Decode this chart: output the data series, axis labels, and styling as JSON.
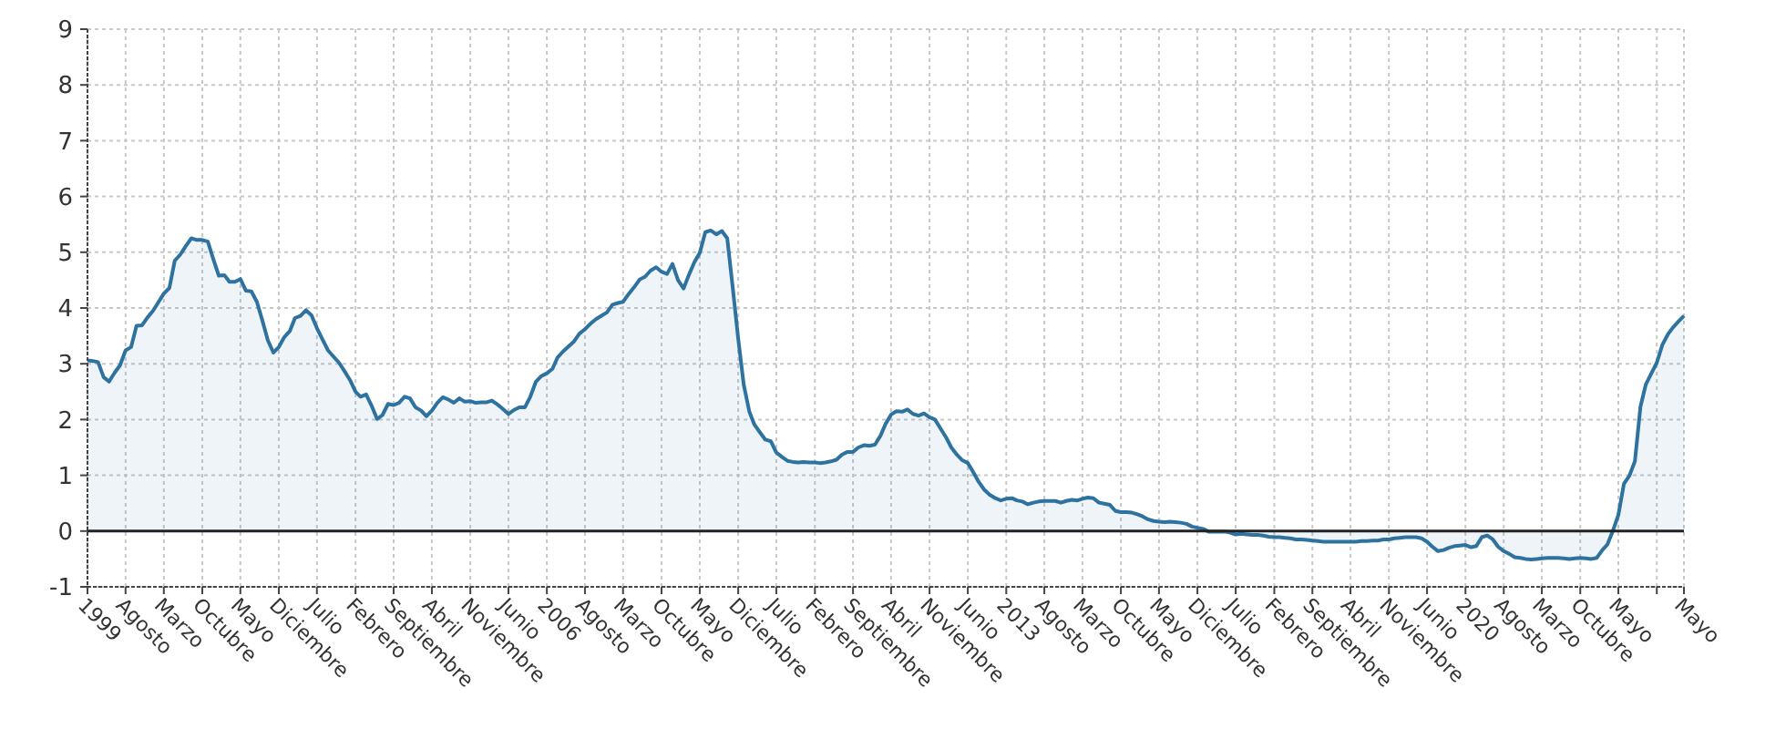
{
  "chart_data": {
    "type": "area",
    "xlim": [
      "1999-01",
      "2023-05"
    ],
    "ylim": [
      -1,
      9
    ],
    "yticks": [
      -1,
      0,
      1,
      2,
      3,
      4,
      5,
      6,
      7,
      8,
      9
    ],
    "xticks": [
      {
        "value": "1999-01",
        "label": "1999"
      },
      {
        "value": "1999-08",
        "label": "Agosto"
      },
      {
        "value": "2000-03",
        "label": "Marzo"
      },
      {
        "value": "2000-10",
        "label": "Octubre"
      },
      {
        "value": "2001-05",
        "label": "Mayo"
      },
      {
        "value": "2001-12",
        "label": "Diciembre"
      },
      {
        "value": "2002-07",
        "label": "Julio"
      },
      {
        "value": "2003-02",
        "label": "Febrero"
      },
      {
        "value": "2003-09",
        "label": "Septiembre"
      },
      {
        "value": "2004-04",
        "label": "Abril"
      },
      {
        "value": "2004-11",
        "label": "Noviembre"
      },
      {
        "value": "2005-06",
        "label": "Junio"
      },
      {
        "value": "2006-01",
        "label": "2006"
      },
      {
        "value": "2006-08",
        "label": "Agosto"
      },
      {
        "value": "2007-03",
        "label": "Marzo"
      },
      {
        "value": "2007-10",
        "label": "Octubre"
      },
      {
        "value": "2008-05",
        "label": "Mayo"
      },
      {
        "value": "2008-12",
        "label": "Diciembre"
      },
      {
        "value": "2009-07",
        "label": "Julio"
      },
      {
        "value": "2010-02",
        "label": "Febrero"
      },
      {
        "value": "2010-09",
        "label": "Septiembre"
      },
      {
        "value": "2011-04",
        "label": "Abril"
      },
      {
        "value": "2011-11",
        "label": "Noviembre"
      },
      {
        "value": "2012-06",
        "label": "Junio"
      },
      {
        "value": "2013-01",
        "label": "2013"
      },
      {
        "value": "2013-08",
        "label": "Agosto"
      },
      {
        "value": "2014-03",
        "label": "Marzo"
      },
      {
        "value": "2014-10",
        "label": "Octubre"
      },
      {
        "value": "2015-05",
        "label": "Mayo"
      },
      {
        "value": "2015-12",
        "label": "Diciembre"
      },
      {
        "value": "2016-07",
        "label": "Julio"
      },
      {
        "value": "2017-02",
        "label": "Febrero"
      },
      {
        "value": "2017-09",
        "label": "Septiembre"
      },
      {
        "value": "2018-04",
        "label": "Abril"
      },
      {
        "value": "2018-11",
        "label": "Noviembre"
      },
      {
        "value": "2019-06",
        "label": "Junio"
      },
      {
        "value": "2020-01",
        "label": "2020"
      },
      {
        "value": "2020-08",
        "label": "Agosto"
      },
      {
        "value": "2021-03",
        "label": "Marzo"
      },
      {
        "value": "2021-10",
        "label": "Octubre"
      },
      {
        "value": "2022-05",
        "label": "Mayo"
      },
      {
        "value": "2022-12",
        "label": null
      },
      {
        "value": "2023-05",
        "label": "Mayo"
      }
    ],
    "grid": true,
    "ref_lines": [
      {
        "axis": "y",
        "value": 0,
        "label": null,
        "color": "#222222"
      }
    ],
    "series": [
      {
        "color": "#2e72a0",
        "x": [
          "1999-01",
          "1999-02",
          "1999-03",
          "1999-04",
          "1999-05",
          "1999-06",
          "1999-07",
          "1999-08",
          "1999-09",
          "1999-10",
          "1999-11",
          "1999-12",
          "2000-01",
          "2000-02",
          "2000-03",
          "2000-04",
          "2000-05",
          "2000-06",
          "2000-07",
          "2000-08",
          "2000-09",
          "2000-10",
          "2000-11",
          "2000-12",
          "2001-01",
          "2001-02",
          "2001-03",
          "2001-04",
          "2001-05",
          "2001-06",
          "2001-07",
          "2001-08",
          "2001-09",
          "2001-10",
          "2001-11",
          "2001-12",
          "2002-01",
          "2002-02",
          "2002-03",
          "2002-04",
          "2002-05",
          "2002-06",
          "2002-07",
          "2002-08",
          "2002-09",
          "2002-10",
          "2002-11",
          "2002-12",
          "2003-01",
          "2003-02",
          "2003-03",
          "2003-04",
          "2003-05",
          "2003-06",
          "2003-07",
          "2003-08",
          "2003-09",
          "2003-10",
          "2003-11",
          "2003-12",
          "2004-01",
          "2004-02",
          "2004-03",
          "2004-04",
          "2004-05",
          "2004-06",
          "2004-07",
          "2004-08",
          "2004-09",
          "2004-10",
          "2004-11",
          "2004-12",
          "2005-01",
          "2005-02",
          "2005-03",
          "2005-04",
          "2005-05",
          "2005-06",
          "2005-07",
          "2005-08",
          "2005-09",
          "2005-10",
          "2005-11",
          "2005-12",
          "2006-01",
          "2006-02",
          "2006-03",
          "2006-04",
          "2006-05",
          "2006-06",
          "2006-07",
          "2006-08",
          "2006-09",
          "2006-10",
          "2006-11",
          "2006-12",
          "2007-01",
          "2007-02",
          "2007-03",
          "2007-04",
          "2007-05",
          "2007-06",
          "2007-07",
          "2007-08",
          "2007-09",
          "2007-10",
          "2007-11",
          "2007-12",
          "2008-01",
          "2008-02",
          "2008-03",
          "2008-04",
          "2008-05",
          "2008-06",
          "2008-07",
          "2008-08",
          "2008-09",
          "2008-10",
          "2008-11",
          "2008-12",
          "2009-01",
          "2009-02",
          "2009-03",
          "2009-04",
          "2009-05",
          "2009-06",
          "2009-07",
          "2009-08",
          "2009-09",
          "2009-10",
          "2009-11",
          "2009-12",
          "2010-01",
          "2010-02",
          "2010-03",
          "2010-04",
          "2010-05",
          "2010-06",
          "2010-07",
          "2010-08",
          "2010-09",
          "2010-10",
          "2010-11",
          "2010-12",
          "2011-01",
          "2011-02",
          "2011-03",
          "2011-04",
          "2011-05",
          "2011-06",
          "2011-07",
          "2011-08",
          "2011-09",
          "2011-10",
          "2011-11",
          "2011-12",
          "2012-01",
          "2012-02",
          "2012-03",
          "2012-04",
          "2012-05",
          "2012-06",
          "2012-07",
          "2012-08",
          "2012-09",
          "2012-10",
          "2012-11",
          "2012-12",
          "2013-01",
          "2013-02",
          "2013-03",
          "2013-04",
          "2013-05",
          "2013-06",
          "2013-07",
          "2013-08",
          "2013-09",
          "2013-10",
          "2013-11",
          "2013-12",
          "2014-01",
          "2014-02",
          "2014-03",
          "2014-04",
          "2014-05",
          "2014-06",
          "2014-07",
          "2014-08",
          "2014-09",
          "2014-10",
          "2014-11",
          "2014-12",
          "2015-01",
          "2015-02",
          "2015-03",
          "2015-04",
          "2015-05",
          "2015-06",
          "2015-07",
          "2015-08",
          "2015-09",
          "2015-10",
          "2015-11",
          "2015-12",
          "2016-01",
          "2016-02",
          "2016-03",
          "2016-04",
          "2016-05",
          "2016-06",
          "2016-07",
          "2016-08",
          "2016-09",
          "2016-10",
          "2016-11",
          "2016-12",
          "2017-01",
          "2017-02",
          "2017-03",
          "2017-04",
          "2017-05",
          "2017-06",
          "2017-07",
          "2017-08",
          "2017-09",
          "2017-10",
          "2017-11",
          "2017-12",
          "2018-01",
          "2018-02",
          "2018-03",
          "2018-04",
          "2018-05",
          "2018-06",
          "2018-07",
          "2018-08",
          "2018-09",
          "2018-10",
          "2018-11",
          "2018-12",
          "2019-01",
          "2019-02",
          "2019-03",
          "2019-04",
          "2019-05",
          "2019-06",
          "2019-07",
          "2019-08",
          "2019-09",
          "2019-10",
          "2019-11",
          "2019-12",
          "2020-01",
          "2020-02",
          "2020-03",
          "2020-04",
          "2020-05",
          "2020-06",
          "2020-07",
          "2020-08",
          "2020-09",
          "2020-10",
          "2020-11",
          "2020-12",
          "2021-01",
          "2021-02",
          "2021-03",
          "2021-04",
          "2021-05",
          "2021-06",
          "2021-07",
          "2021-08",
          "2021-09",
          "2021-10",
          "2021-11",
          "2021-12",
          "2022-01",
          "2022-02",
          "2022-03",
          "2022-04",
          "2022-05",
          "2022-06",
          "2022-07",
          "2022-08",
          "2022-09",
          "2022-10",
          "2022-11",
          "2022-12",
          "2023-01",
          "2023-02",
          "2023-03",
          "2023-04",
          "2023-05"
        ],
        "values": [
          3.06,
          3.05,
          3.03,
          2.76,
          2.68,
          2.84,
          2.97,
          3.24,
          3.3,
          3.68,
          3.69,
          3.83,
          3.95,
          4.11,
          4.26,
          4.36,
          4.85,
          4.96,
          5.11,
          5.25,
          5.22,
          5.22,
          5.19,
          4.88,
          4.58,
          4.59,
          4.47,
          4.47,
          4.52,
          4.31,
          4.3,
          4.11,
          3.77,
          3.42,
          3.2,
          3.3,
          3.48,
          3.59,
          3.82,
          3.86,
          3.96,
          3.87,
          3.64,
          3.44,
          3.24,
          3.13,
          3.02,
          2.87,
          2.71,
          2.5,
          2.41,
          2.45,
          2.25,
          2.01,
          2.08,
          2.28,
          2.26,
          2.3,
          2.41,
          2.38,
          2.22,
          2.16,
          2.06,
          2.16,
          2.3,
          2.4,
          2.36,
          2.3,
          2.38,
          2.32,
          2.33,
          2.3,
          2.31,
          2.31,
          2.34,
          2.27,
          2.19,
          2.1,
          2.17,
          2.22,
          2.22,
          2.41,
          2.68,
          2.78,
          2.83,
          2.91,
          3.11,
          3.22,
          3.31,
          3.4,
          3.54,
          3.62,
          3.72,
          3.8,
          3.86,
          3.92,
          4.06,
          4.09,
          4.11,
          4.25,
          4.37,
          4.51,
          4.56,
          4.67,
          4.73,
          4.65,
          4.61,
          4.79,
          4.5,
          4.35,
          4.59,
          4.82,
          4.99,
          5.36,
          5.39,
          5.32,
          5.38,
          5.25,
          4.35,
          3.45,
          2.62,
          2.14,
          1.91,
          1.77,
          1.64,
          1.61,
          1.41,
          1.33,
          1.26,
          1.24,
          1.23,
          1.24,
          1.23,
          1.23,
          1.22,
          1.23,
          1.25,
          1.28,
          1.37,
          1.42,
          1.42,
          1.5,
          1.54,
          1.53,
          1.55,
          1.71,
          1.92,
          2.09,
          2.15,
          2.14,
          2.18,
          2.1,
          2.07,
          2.11,
          2.04,
          2.0,
          1.84,
          1.68,
          1.5,
          1.37,
          1.27,
          1.22,
          1.06,
          0.88,
          0.74,
          0.65,
          0.59,
          0.55,
          0.58,
          0.59,
          0.55,
          0.53,
          0.48,
          0.51,
          0.53,
          0.54,
          0.54,
          0.54,
          0.51,
          0.54,
          0.56,
          0.55,
          0.58,
          0.6,
          0.59,
          0.51,
          0.49,
          0.47,
          0.36,
          0.34,
          0.34,
          0.33,
          0.3,
          0.26,
          0.21,
          0.18,
          0.17,
          0.16,
          0.17,
          0.16,
          0.15,
          0.13,
          0.08,
          0.06,
          0.04,
          -0.01,
          -0.01,
          -0.01,
          -0.01,
          -0.03,
          -0.06,
          -0.05,
          -0.06,
          -0.07,
          -0.07,
          -0.08,
          -0.1,
          -0.11,
          -0.11,
          -0.12,
          -0.13,
          -0.15,
          -0.15,
          -0.16,
          -0.17,
          -0.18,
          -0.19,
          -0.19,
          -0.19,
          -0.19,
          -0.19,
          -0.19,
          -0.19,
          -0.18,
          -0.18,
          -0.17,
          -0.17,
          -0.15,
          -0.15,
          -0.13,
          -0.12,
          -0.11,
          -0.11,
          -0.11,
          -0.13,
          -0.19,
          -0.28,
          -0.36,
          -0.34,
          -0.3,
          -0.27,
          -0.26,
          -0.25,
          -0.29,
          -0.27,
          -0.11,
          -0.08,
          -0.15,
          -0.28,
          -0.36,
          -0.41,
          -0.47,
          -0.48,
          -0.5,
          -0.51,
          -0.5,
          -0.49,
          -0.48,
          -0.48,
          -0.48,
          -0.49,
          -0.5,
          -0.49,
          -0.48,
          -0.49,
          -0.5,
          -0.48,
          -0.34,
          -0.24,
          0.01,
          0.29,
          0.85,
          0.99,
          1.25,
          2.23,
          2.63,
          2.83,
          3.02,
          3.34,
          3.53,
          3.65,
          3.76,
          3.86
        ]
      }
    ]
  }
}
